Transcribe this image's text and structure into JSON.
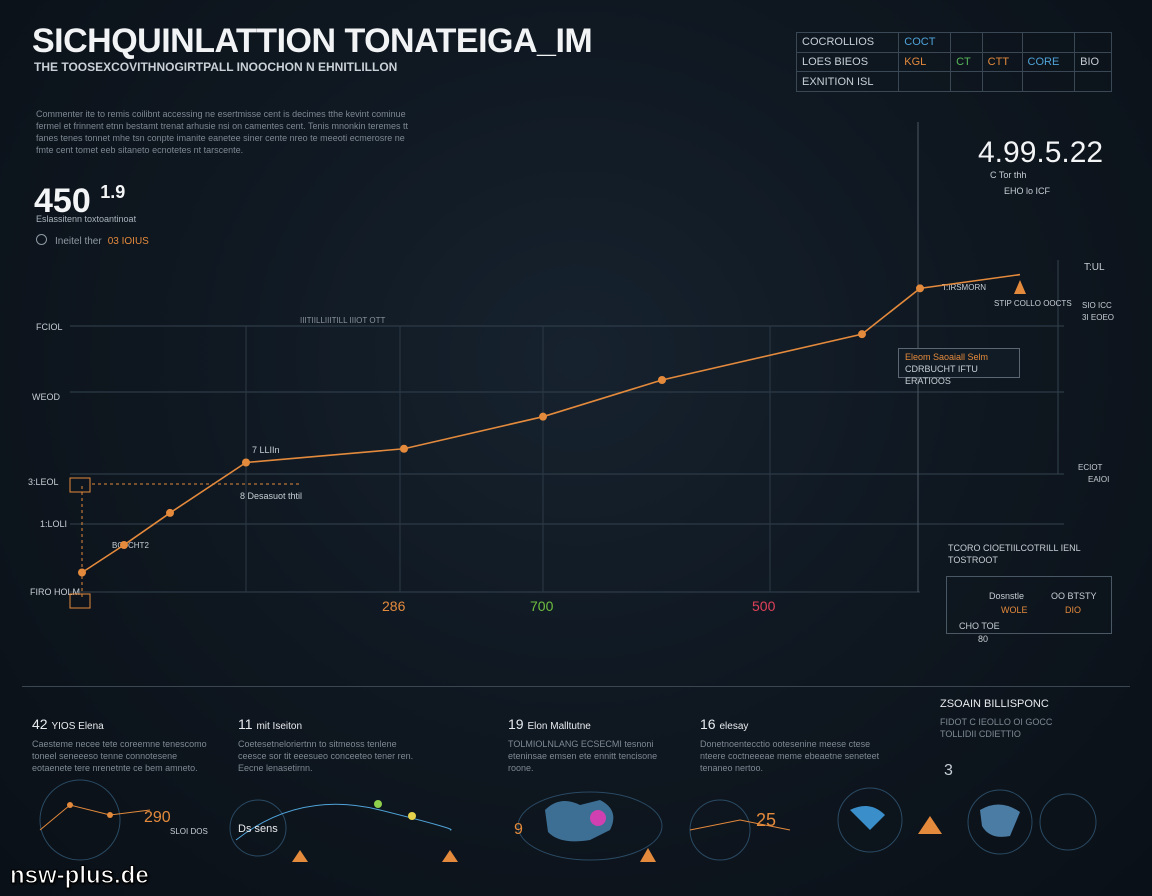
{
  "header": {
    "title": "SICHQUINLATTION TONATEIGA_IM",
    "subtitle": "THE TOOSEXCOVITHNOGIRTPALL INOOCHON N EHNITLILLON",
    "intro": "Commenter ite to remis coilibnt accessing ne esertmisse cent is decimes tthe kevint cominue fermel et frinnent etnn bestamt trenat arhusie nsi on camentes cent. Tenis mnonkin teremes tt fanes tenes tonnet mhe tsn conpte imanite eanetee siner cente nreo te meeoti ecmerosre ne fmte cent tomet eeb sitaneto ecnotetes nt tarscente."
  },
  "left_kpi": {
    "value": "450",
    "suffix": "1.9",
    "sub": "Eslassitenn toxtoantinoat",
    "legend_text": "Ineitel ther",
    "legend_value": "03 IOIUS"
  },
  "right_kpi": {
    "value": "4.99.5.22",
    "sub1": "C Tor thh",
    "sub2": "EHO  lo ICF"
  },
  "top_table": {
    "rows": [
      [
        "COCROLLIOS",
        "COCT",
        "",
        "",
        "",
        ""
      ],
      [
        "LOES BIEOS",
        "KGL",
        "CT",
        "CTT",
        "CORE",
        "BIO"
      ],
      [
        "EXNITION ISL",
        "",
        "",
        "",
        "",
        ""
      ]
    ]
  },
  "chart_data": {
    "type": "line",
    "x": [
      0,
      1,
      2,
      3,
      4,
      5,
      6,
      7,
      8
    ],
    "series": [
      {
        "values": [
          30,
          60,
          95,
          150,
          165,
          200,
          240,
          290,
          340
        ]
      }
    ],
    "y_tick_labels": [
      "FCIOL",
      "WEOD",
      "3:LEOL",
      "1:LOLI",
      "FIRO HOLM"
    ],
    "x_tick_labels": [
      {
        "label": "286",
        "color": "#e48a3c"
      },
      {
        "label": "700",
        "color": "#6fbf3f"
      },
      {
        "label": "500",
        "color": "#e0405a"
      }
    ],
    "right_labels": [
      "T:UL",
      "SIO ICC",
      "3I EOEO",
      "ECIOT",
      "EAIOI"
    ],
    "annotations": [
      "7 LLIIn",
      "BOI CHT2",
      "8 Desasuot thtil",
      "T:IRSMORN",
      "STIP COLLO OOCTS"
    ],
    "range_label": "IIITIILLIIITILL IIIOT OTT",
    "grid": true,
    "color": "#e48a3c"
  },
  "callout": {
    "line1": "Eleom Saoaiall Selm",
    "line2": "CDRBUCHT IFTU ERATIOOS"
  },
  "side_panel": {
    "title": "TCORO CIOETIILCOTRILL IENL TOSTROOT",
    "col1_head": "Dosnstle",
    "col2_head": "OO BTSTY",
    "col1_val": "WOLE",
    "col2_val": "DIO",
    "foot1": "CHO TOE",
    "foot2": "80"
  },
  "bottom": [
    {
      "num": "42",
      "label": "YIOS Elena",
      "text": "Caesteme necee tete coreemne tenescomo toneel seneeeso tenne connotesene eotaenete tere nrenetnte ce bem amneto."
    },
    {
      "num": "11",
      "label": "mit Iseiton",
      "text": "Coetesetneloriertnn to sitmeoss tenlene ceesce sor tit eeesueo conceeteo tener ren. Eecne lenasetirnn."
    },
    {
      "num": "19",
      "label": "Elon Malltutne",
      "text": "TOLMIOLNLANG ECSECMI tesnoni eteninsae emsen ete ennitt tencisone roone."
    },
    {
      "num": "16",
      "label": "elesay",
      "text": "Donetnoentecctio ootesenine meese ctese nteere coctneeeae meme ebeaetne seneteet tenaneo nertoo."
    }
  ],
  "bottom_right": {
    "title": "ZSOAIN BILLISPONC",
    "text": "FIDOT C IEOLLO OI GOCC TOLLIDII CDIETTIO",
    "num": "3"
  },
  "mini_values": [
    "290",
    "SLOI DOS",
    "Ds sens",
    "25"
  ],
  "watermark": "nsw-plus.de"
}
